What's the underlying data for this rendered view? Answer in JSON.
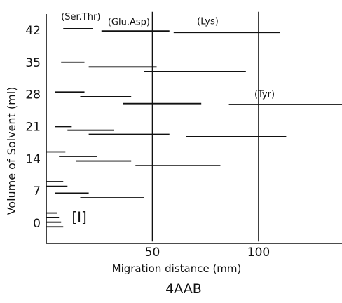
{
  "chart_data": {
    "type": "line",
    "title": "4AAB",
    "xlabel": "Migration distance (mm)",
    "ylabel": "Volume of Solvent (ml)",
    "xlim": [
      0,
      140
    ],
    "ylim": [
      -4,
      46
    ],
    "grid": false,
    "x_ticks": [
      {
        "value": 50,
        "label": "50"
      },
      {
        "value": 100,
        "label": "100"
      }
    ],
    "y_ticks": [
      {
        "value": 0,
        "label": "0"
      },
      {
        "value": 7,
        "label": "7"
      },
      {
        "value": 14,
        "label": "14"
      },
      {
        "value": 21,
        "label": "21"
      },
      {
        "value": 28,
        "label": "28"
      },
      {
        "value": 35,
        "label": "35"
      },
      {
        "value": 42,
        "label": "42"
      }
    ],
    "reference_lines_x": [
      50,
      100
    ],
    "segments": [
      {
        "y": 42.3,
        "x": [
          8,
          22
        ]
      },
      {
        "y": 41.8,
        "x": [
          26,
          58
        ]
      },
      {
        "y": 41.5,
        "x": [
          60,
          110
        ]
      },
      {
        "y": 35.0,
        "x": [
          7,
          18
        ]
      },
      {
        "y": 34.0,
        "x": [
          20,
          52
        ]
      },
      {
        "y": 33.0,
        "x": [
          46,
          94
        ]
      },
      {
        "y": 28.5,
        "x": [
          4,
          18
        ]
      },
      {
        "y": 27.5,
        "x": [
          16,
          40
        ]
      },
      {
        "y": 26.0,
        "x": [
          36,
          73
        ]
      },
      {
        "y": 25.8,
        "x": [
          86,
          140
        ]
      },
      {
        "y": 21.0,
        "x": [
          4,
          12
        ]
      },
      {
        "y": 20.2,
        "x": [
          10,
          32
        ]
      },
      {
        "y": 19.3,
        "x": [
          20,
          58
        ]
      },
      {
        "y": 18.8,
        "x": [
          66,
          113
        ]
      },
      {
        "y": 15.5,
        "x": [
          0,
          9
        ]
      },
      {
        "y": 14.5,
        "x": [
          6,
          24
        ]
      },
      {
        "y": 13.5,
        "x": [
          14,
          40
        ]
      },
      {
        "y": 12.5,
        "x": [
          42,
          82
        ]
      },
      {
        "y": 9.0,
        "x": [
          0,
          8
        ]
      },
      {
        "y": 8.0,
        "x": [
          0,
          10
        ]
      },
      {
        "y": 6.5,
        "x": [
          4,
          20
        ]
      },
      {
        "y": 5.5,
        "x": [
          16,
          46
        ]
      },
      {
        "y": 2.2,
        "x": [
          0,
          5
        ]
      },
      {
        "y": 1.2,
        "x": [
          0,
          6
        ]
      },
      {
        "y": 0.2,
        "x": [
          0,
          7
        ]
      },
      {
        "y": -0.8,
        "x": [
          0,
          8
        ]
      }
    ],
    "annotations": [
      {
        "text": "(Ser.Thr)",
        "x": 7,
        "y": 44.3
      },
      {
        "text": "(Glu.Asp)",
        "x": 29,
        "y": 43.1
      },
      {
        "text": "(Lys)",
        "x": 71,
        "y": 43.3
      },
      {
        "text": "(Tyr)",
        "x": 98,
        "y": 27.4
      },
      {
        "text": "[I]",
        "x": 12,
        "y": 0.2
      }
    ]
  }
}
